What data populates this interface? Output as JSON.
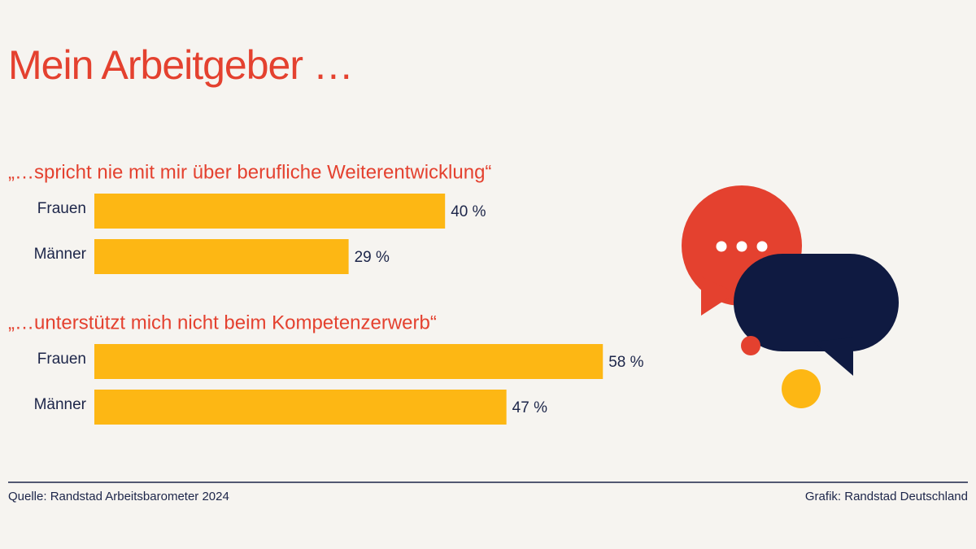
{
  "title": "Mein Arbeitgeber …",
  "chart_data": [
    {
      "type": "bar",
      "orientation": "horizontal",
      "title": "„…spricht nie mit mir über berufliche Weiterentwicklung“",
      "categories": [
        "Frauen",
        "Männer"
      ],
      "values": [
        40,
        29
      ],
      "value_labels": [
        "40 %",
        "29 %"
      ],
      "color": "#fdb714"
    },
    {
      "type": "bar",
      "orientation": "horizontal",
      "title": "„…unterstützt mich nicht beim Kompetenzerwerb“",
      "categories": [
        "Frauen",
        "Männer"
      ],
      "values": [
        58,
        47
      ],
      "value_labels": [
        "58 %",
        "47 %"
      ],
      "color": "#fdb714"
    }
  ],
  "source": "Quelle: Randstad Arbeitsbarometer 2024",
  "credit": "Grafik: Randstad Deutschland"
}
